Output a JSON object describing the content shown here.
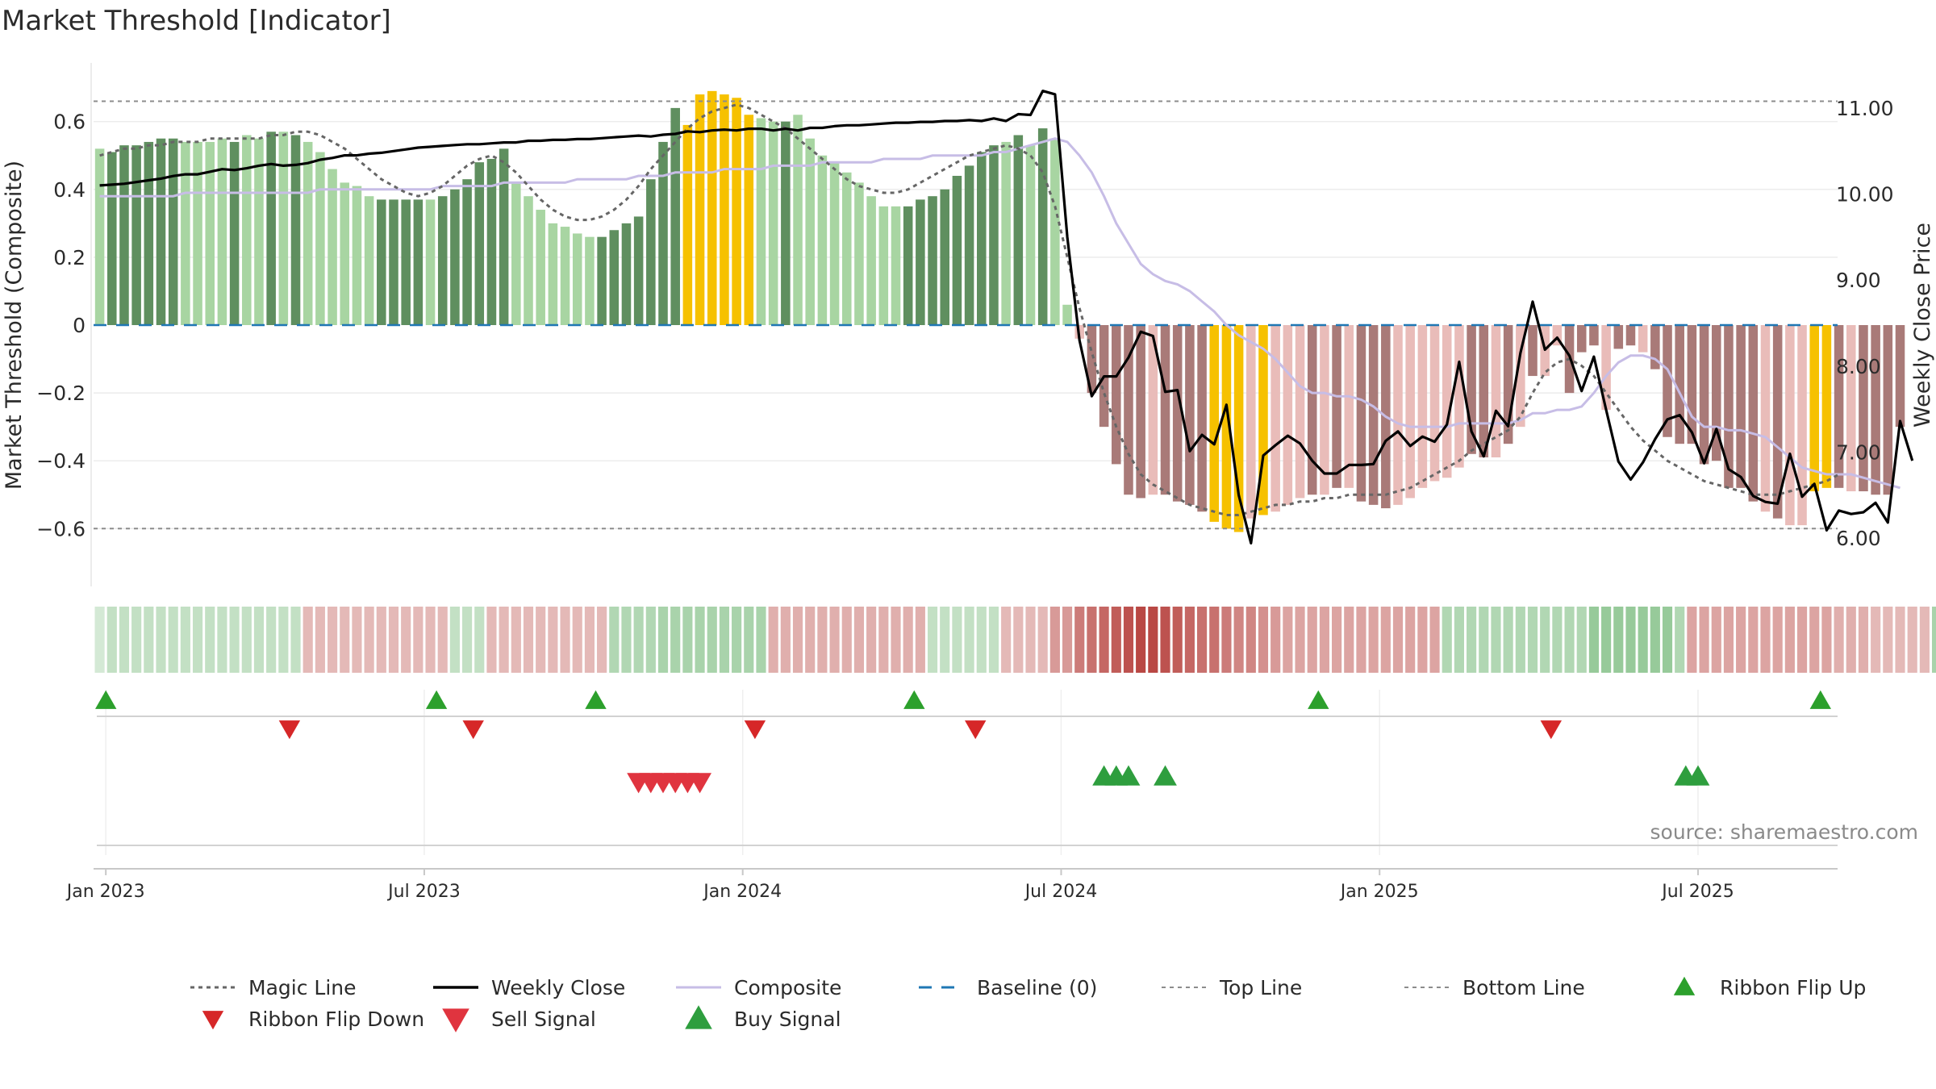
{
  "title": "Market Threshold [Indicator]",
  "source": "source: sharemaestro.com",
  "colors": {
    "strong_green": "#5f8f5f",
    "light_green": "#a8d5a2",
    "strong_red": "#a97a78",
    "light_red": "#e9bcb9",
    "yellow": "#f6c100",
    "weekly_close": "#000000",
    "magic_line": "#666666",
    "composite": "#c7bde6",
    "baseline": "#1f77b4",
    "ribbon_up": "#2ca02c",
    "ribbon_down": "#d62728",
    "sell": "#e0343f",
    "buy": "#2e9e3e"
  },
  "chart_data": {
    "type": "bar",
    "y_left_label": "Market Threshold (Composite)",
    "y_right_label": "Weekly Close Price",
    "y_left_ticks": [
      "0.6",
      "0.4",
      "0.2",
      "0",
      "−0.2",
      "−0.4",
      "−0.6"
    ],
    "y_left_tick_values": [
      0.6,
      0.4,
      0.2,
      0,
      -0.2,
      -0.4,
      -0.6
    ],
    "y_right_ticks": [
      "11.00",
      "10.00",
      "9.00",
      "8.00",
      "7.00",
      "6.00"
    ],
    "y_right_tick_values": [
      11,
      10,
      9,
      8,
      7,
      6
    ],
    "y_left_range": [
      -0.77,
      0.77
    ],
    "y_right_range": [
      5.45,
      11.6
    ],
    "x_ticks": [
      "Jan 2023",
      "Jul 2023",
      "Jan 2024",
      "Jul 2024",
      "Jan 2025",
      "Jul 2025"
    ],
    "x_tick_weeks": [
      1,
      27,
      53,
      79,
      105,
      131
    ],
    "reference_lines": {
      "top_line": 0.66,
      "bottom_line": -0.6,
      "baseline": 0
    },
    "weeks": 142,
    "composite_bars": [
      0.52,
      0.51,
      0.53,
      0.53,
      0.54,
      0.55,
      0.55,
      0.54,
      0.54,
      0.54,
      0.55,
      0.54,
      0.56,
      0.55,
      0.57,
      0.57,
      0.56,
      0.54,
      0.51,
      0.46,
      0.42,
      0.41,
      0.38,
      0.37,
      0.37,
      0.37,
      0.37,
      0.37,
      0.38,
      0.4,
      0.43,
      0.48,
      0.49,
      0.52,
      0.42,
      0.38,
      0.34,
      0.3,
      0.29,
      0.27,
      0.26,
      0.26,
      0.28,
      0.3,
      0.32,
      0.43,
      0.54,
      0.64,
      0.59,
      0.68,
      0.69,
      0.68,
      0.67,
      0.62,
      0.61,
      0.6,
      0.6,
      0.62,
      0.55,
      0.5,
      0.48,
      0.45,
      0.42,
      0.38,
      0.35,
      0.35,
      0.35,
      0.37,
      0.38,
      0.4,
      0.44,
      0.47,
      0.51,
      0.53,
      0.54,
      0.56,
      0.53,
      0.58,
      0.55,
      0.06,
      -0.04,
      -0.2,
      -0.3,
      -0.41,
      -0.5,
      -0.51,
      -0.5,
      -0.5,
      -0.52,
      -0.53,
      -0.55,
      -0.58,
      -0.6,
      -0.61,
      -0.57,
      -0.56,
      -0.55,
      -0.53,
      -0.51,
      -0.5,
      -0.5,
      -0.48,
      -0.48,
      -0.52,
      -0.53,
      -0.54,
      -0.53,
      -0.51,
      -0.48,
      -0.46,
      -0.45,
      -0.42,
      -0.38,
      -0.39,
      -0.39,
      -0.35,
      -0.3,
      -0.15,
      -0.15,
      -0.06,
      -0.2,
      -0.08,
      -0.06,
      -0.25,
      -0.07,
      -0.06,
      -0.08,
      -0.13,
      -0.33,
      -0.35,
      -0.35,
      -0.41,
      -0.4,
      -0.48,
      -0.48,
      -0.52,
      -0.55,
      -0.57,
      -0.59,
      -0.59,
      -0.49,
      -0.48,
      -0.48,
      -0.49,
      -0.49,
      -0.5,
      -0.5,
      -0.3
    ],
    "bar_styles": [
      "L",
      "S",
      "S",
      "S",
      "S",
      "S",
      "S",
      "L",
      "L",
      "L",
      "L",
      "S",
      "L",
      "L",
      "S",
      "L",
      "S",
      "L",
      "L",
      "L",
      "L",
      "L",
      "L",
      "S",
      "S",
      "S",
      "S",
      "L",
      "S",
      "S",
      "S",
      "S",
      "S",
      "S",
      "L",
      "L",
      "L",
      "L",
      "L",
      "L",
      "L",
      "S",
      "S",
      "S",
      "S",
      "S",
      "S",
      "S",
      "Y",
      "Y",
      "Y",
      "Y",
      "Y",
      "Y",
      "L",
      "L",
      "S",
      "L",
      "L",
      "L",
      "L",
      "L",
      "L",
      "L",
      "L",
      "L",
      "S",
      "S",
      "S",
      "S",
      "S",
      "S",
      "S",
      "S",
      "L",
      "S",
      "L",
      "S",
      "L",
      "L",
      "L",
      "S",
      "S",
      "S",
      "S",
      "S",
      "L",
      "S",
      "S",
      "S",
      "S",
      "Y",
      "Y",
      "Y",
      "L",
      "Y",
      "L",
      "L",
      "L",
      "S",
      "L",
      "S",
      "L",
      "S",
      "S",
      "S",
      "L",
      "L",
      "L",
      "L",
      "L",
      "L",
      "S",
      "S",
      "L",
      "S",
      "L",
      "S",
      "L",
      "L",
      "S",
      "S",
      "S",
      "L",
      "S",
      "S",
      "L",
      "S",
      "S",
      "S",
      "S",
      "S",
      "S",
      "S",
      "S",
      "S",
      "L",
      "S",
      "L",
      "L",
      "Y",
      "Y",
      "S",
      "L",
      "S",
      "S",
      "S",
      "S",
      "L"
    ],
    "series": [
      {
        "name": "Magic Line",
        "values": [
          0.5,
          0.51,
          0.52,
          0.52,
          0.53,
          0.53,
          0.54,
          0.54,
          0.54,
          0.55,
          0.55,
          0.55,
          0.55,
          0.55,
          0.56,
          0.56,
          0.57,
          0.57,
          0.56,
          0.54,
          0.52,
          0.49,
          0.46,
          0.43,
          0.41,
          0.39,
          0.38,
          0.39,
          0.41,
          0.44,
          0.47,
          0.49,
          0.5,
          0.48,
          0.45,
          0.41,
          0.37,
          0.34,
          0.32,
          0.31,
          0.31,
          0.32,
          0.34,
          0.37,
          0.41,
          0.46,
          0.5,
          0.54,
          0.58,
          0.61,
          0.63,
          0.64,
          0.65,
          0.64,
          0.62,
          0.6,
          0.58,
          0.55,
          0.52,
          0.49,
          0.46,
          0.43,
          0.41,
          0.4,
          0.39,
          0.39,
          0.4,
          0.42,
          0.44,
          0.46,
          0.48,
          0.5,
          0.51,
          0.52,
          0.53,
          0.52,
          0.5,
          0.45,
          0.35,
          0.2,
          0.05,
          -0.08,
          -0.2,
          -0.3,
          -0.38,
          -0.44,
          -0.47,
          -0.49,
          -0.51,
          -0.53,
          -0.54,
          -0.55,
          -0.56,
          -0.56,
          -0.55,
          -0.54,
          -0.53,
          -0.53,
          -0.52,
          -0.52,
          -0.51,
          -0.51,
          -0.5,
          -0.5,
          -0.5,
          -0.5,
          -0.49,
          -0.48,
          -0.46,
          -0.44,
          -0.42,
          -0.4,
          -0.37,
          -0.35,
          -0.33,
          -0.31,
          -0.27,
          -0.2,
          -0.14,
          -0.11,
          -0.1,
          -0.12,
          -0.15,
          -0.2,
          -0.25,
          -0.3,
          -0.34,
          -0.37,
          -0.4,
          -0.42,
          -0.44,
          -0.46,
          -0.47,
          -0.48,
          -0.49,
          -0.5,
          -0.5,
          -0.5,
          -0.49,
          -0.48,
          -0.47,
          -0.46,
          -0.44
        ]
      },
      {
        "name": "Weekly Close",
        "values": [
          10.1,
          10.11,
          10.12,
          10.14,
          10.16,
          10.18,
          10.21,
          10.23,
          10.23,
          10.26,
          10.29,
          10.28,
          10.3,
          10.33,
          10.35,
          10.33,
          10.34,
          10.36,
          10.4,
          10.42,
          10.45,
          10.45,
          10.47,
          10.48,
          10.5,
          10.52,
          10.54,
          10.55,
          10.56,
          10.57,
          10.58,
          10.58,
          10.59,
          10.6,
          10.6,
          10.62,
          10.62,
          10.63,
          10.63,
          10.64,
          10.64,
          10.65,
          10.66,
          10.67,
          10.68,
          10.67,
          10.69,
          10.7,
          10.73,
          10.72,
          10.74,
          10.75,
          10.74,
          10.76,
          10.76,
          10.74,
          10.76,
          10.74,
          10.77,
          10.77,
          10.79,
          10.8,
          10.8,
          10.81,
          10.82,
          10.83,
          10.83,
          10.84,
          10.84,
          10.85,
          10.85,
          10.86,
          10.85,
          10.88,
          10.85,
          10.93,
          10.92,
          11.2,
          11.16,
          9.5,
          8.3,
          7.65,
          7.88,
          7.88,
          8.1,
          8.4,
          8.35,
          7.7,
          7.72,
          7.01,
          7.2,
          7.09,
          7.55,
          6.5,
          5.94,
          6.96,
          7.08,
          7.19,
          7.1,
          6.9,
          6.75,
          6.75,
          6.85,
          6.85,
          6.86,
          7.13,
          7.24,
          7.07,
          7.18,
          7.12,
          7.32,
          8.05,
          7.24,
          6.95,
          7.48,
          7.3,
          8.15,
          8.75,
          8.19,
          8.33,
          8.12,
          7.71,
          8.11,
          7.49,
          6.89,
          6.68,
          6.88,
          7.15,
          7.38,
          7.43,
          7.23,
          6.87,
          7.27,
          6.8,
          6.71,
          6.49,
          6.42,
          6.4,
          6.98,
          6.48,
          6.63,
          6.09,
          6.32,
          6.28,
          6.3,
          6.41,
          6.18,
          7.36,
          6.9
        ]
      },
      {
        "name": "Composite",
        "values": [
          0.38,
          0.38,
          0.38,
          0.38,
          0.38,
          0.38,
          0.38,
          0.39,
          0.39,
          0.39,
          0.39,
          0.39,
          0.39,
          0.39,
          0.39,
          0.39,
          0.39,
          0.39,
          0.4,
          0.4,
          0.4,
          0.4,
          0.4,
          0.4,
          0.4,
          0.4,
          0.4,
          0.4,
          0.41,
          0.41,
          0.41,
          0.41,
          0.41,
          0.42,
          0.42,
          0.42,
          0.42,
          0.42,
          0.42,
          0.43,
          0.43,
          0.43,
          0.43,
          0.43,
          0.44,
          0.44,
          0.44,
          0.45,
          0.45,
          0.45,
          0.45,
          0.46,
          0.46,
          0.46,
          0.46,
          0.47,
          0.47,
          0.47,
          0.47,
          0.48,
          0.48,
          0.48,
          0.48,
          0.48,
          0.49,
          0.49,
          0.49,
          0.49,
          0.5,
          0.5,
          0.5,
          0.5,
          0.5,
          0.51,
          0.51,
          0.52,
          0.53,
          0.54,
          0.55,
          0.54,
          0.5,
          0.45,
          0.38,
          0.3,
          0.24,
          0.18,
          0.15,
          0.13,
          0.12,
          0.1,
          0.07,
          0.04,
          0.0,
          -0.03,
          -0.05,
          -0.07,
          -0.1,
          -0.14,
          -0.18,
          -0.2,
          -0.2,
          -0.21,
          -0.21,
          -0.22,
          -0.24,
          -0.27,
          -0.29,
          -0.3,
          -0.3,
          -0.3,
          -0.3,
          -0.29,
          -0.29,
          -0.29,
          -0.29,
          -0.29,
          -0.28,
          -0.26,
          -0.26,
          -0.25,
          -0.25,
          -0.24,
          -0.2,
          -0.15,
          -0.11,
          -0.09,
          -0.09,
          -0.1,
          -0.13,
          -0.2,
          -0.27,
          -0.3,
          -0.3,
          -0.31,
          -0.31,
          -0.32,
          -0.33,
          -0.36,
          -0.39,
          -0.42,
          -0.43,
          -0.44,
          -0.44,
          -0.44,
          -0.45,
          -0.46,
          -0.47,
          -0.48
        ]
      },
      {
        "name": "Baseline (0)"
      },
      {
        "name": "Top Line"
      },
      {
        "name": "Bottom Line"
      }
    ],
    "ribbon": [
      0.1,
      0.2,
      0.2,
      0.2,
      0.2,
      0.2,
      0.2,
      0.2,
      0.2,
      0.2,
      0.2,
      0.2,
      0.2,
      0.2,
      0.2,
      0.2,
      0.2,
      -0.2,
      -0.2,
      -0.2,
      -0.2,
      -0.2,
      -0.2,
      -0.2,
      -0.2,
      -0.2,
      -0.2,
      -0.2,
      -0.2,
      0.2,
      0.2,
      0.2,
      -0.2,
      -0.2,
      -0.2,
      -0.2,
      -0.2,
      -0.2,
      -0.2,
      -0.2,
      -0.2,
      -0.2,
      0.3,
      0.3,
      0.3,
      0.3,
      0.35,
      0.35,
      0.35,
      0.35,
      0.35,
      0.35,
      0.35,
      0.35,
      0.35,
      -0.25,
      -0.25,
      -0.25,
      -0.25,
      -0.25,
      -0.25,
      -0.25,
      -0.25,
      -0.25,
      -0.25,
      -0.25,
      -0.25,
      -0.25,
      0.2,
      0.2,
      0.2,
      0.2,
      0.2,
      0.2,
      -0.2,
      -0.2,
      -0.2,
      -0.2,
      -0.35,
      -0.35,
      -0.5,
      -0.55,
      -0.6,
      -0.65,
      -0.7,
      -0.75,
      -0.75,
      -0.7,
      -0.65,
      -0.6,
      -0.55,
      -0.55,
      -0.5,
      -0.45,
      -0.45,
      -0.4,
      -0.35,
      -0.3,
      -0.3,
      -0.3,
      -0.3,
      -0.3,
      -0.3,
      -0.3,
      -0.3,
      -0.3,
      -0.3,
      -0.3,
      -0.3,
      -0.3,
      0.3,
      0.3,
      0.3,
      0.3,
      0.3,
      0.3,
      0.3,
      0.3,
      0.3,
      0.3,
      0.3,
      0.3,
      0.45,
      0.45,
      0.45,
      0.45,
      0.45,
      0.45,
      0.45,
      0.3,
      -0.3,
      -0.3,
      -0.3,
      -0.3,
      -0.3,
      -0.3,
      -0.3,
      -0.3,
      -0.3,
      -0.3,
      -0.3,
      -0.3,
      -0.25,
      -0.25,
      -0.25,
      -0.2,
      -0.2,
      -0.2,
      -0.2,
      -0.2,
      0.35
    ],
    "ribbon_flip_up_weeks": [
      1,
      28,
      41,
      67,
      100,
      141
    ],
    "ribbon_flip_down_weeks": [
      16,
      31,
      54,
      72,
      119
    ],
    "sell_signal_weeks": [
      44.5,
      45.5,
      46.5,
      47.5,
      48.5,
      49.5
    ],
    "buy_signal_weeks": [
      82.5,
      83.5,
      84.5,
      87.5,
      130,
      131
    ],
    "legend": [
      "Magic Line",
      "Weekly Close",
      "Composite",
      "Baseline (0)",
      "Top Line",
      "Bottom Line",
      "Ribbon Flip Up",
      "Ribbon Flip Down",
      "Sell Signal",
      "Buy Signal"
    ]
  }
}
